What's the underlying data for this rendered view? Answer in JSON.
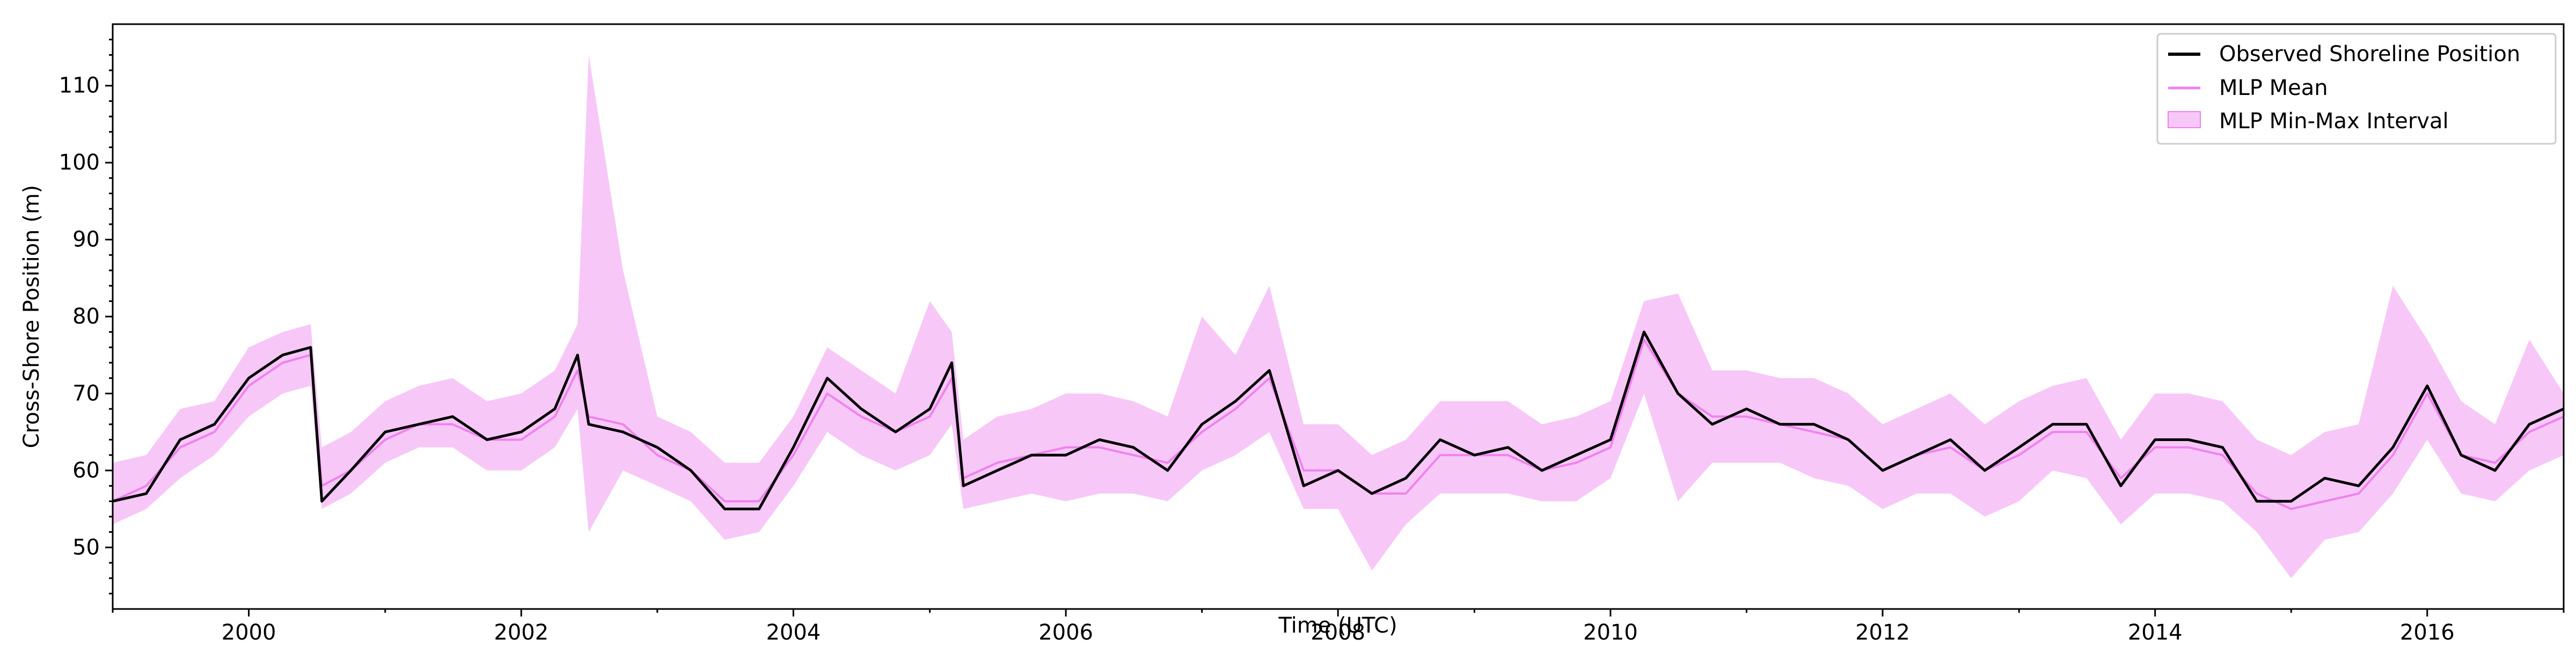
{
  "chart_data": {
    "type": "line",
    "xlabel": "Time (UTC)",
    "ylabel": "Cross-Shore Position (m)",
    "xlim": [
      "1999-01-01",
      "2017-01-01"
    ],
    "ylim": [
      42,
      118
    ],
    "x_ticks": [
      "2000",
      "2002",
      "2004",
      "2006",
      "2008",
      "2010",
      "2012",
      "2014",
      "2016"
    ],
    "y_ticks": [
      50,
      60,
      70,
      80,
      90,
      100,
      110
    ],
    "grid": false,
    "legend_position": "top-right",
    "legend": [
      "Observed Shoreline Position",
      "MLP Mean",
      "MLP Min-Max Interval"
    ],
    "colors": {
      "observed": "#000000",
      "mlp_mean": "#ee82ee",
      "mlp_band": "#ee82ee"
    },
    "x": [
      "1999-01-01",
      "1999-04-01",
      "1999-07-01",
      "1999-10-01",
      "2000-01-01",
      "2000-04-01",
      "2000-06-15",
      "2000-07-15",
      "2000-10-01",
      "2001-01-01",
      "2001-04-01",
      "2001-07-01",
      "2001-10-01",
      "2002-01-01",
      "2002-04-01",
      "2002-06-01",
      "2002-07-01",
      "2002-10-01",
      "2003-01-01",
      "2003-04-01",
      "2003-07-01",
      "2003-10-01",
      "2004-01-01",
      "2004-04-01",
      "2004-07-01",
      "2004-10-01",
      "2005-01-01",
      "2005-03-01",
      "2005-04-01",
      "2005-07-01",
      "2005-10-01",
      "2006-01-01",
      "2006-04-01",
      "2006-07-01",
      "2006-10-01",
      "2007-01-01",
      "2007-04-01",
      "2007-07-01",
      "2007-10-01",
      "2008-01-01",
      "2008-04-01",
      "2008-07-01",
      "2008-10-01",
      "2009-01-01",
      "2009-04-01",
      "2009-07-01",
      "2009-10-01",
      "2010-01-01",
      "2010-04-01",
      "2010-07-01",
      "2010-10-01",
      "2011-01-01",
      "2011-04-01",
      "2011-07-01",
      "2011-10-01",
      "2012-01-01",
      "2012-04-01",
      "2012-07-01",
      "2012-10-01",
      "2013-01-01",
      "2013-04-01",
      "2013-07-01",
      "2013-10-01",
      "2014-01-01",
      "2014-04-01",
      "2014-07-01",
      "2014-10-01",
      "2015-01-01",
      "2015-04-01",
      "2015-07-01",
      "2015-10-01",
      "2016-01-01",
      "2016-04-01",
      "2016-07-01",
      "2016-10-01",
      "2017-01-01"
    ],
    "series": [
      {
        "name": "Observed Shoreline Position",
        "values": [
          56,
          57,
          64,
          66,
          72,
          75,
          76,
          56,
          60,
          65,
          66,
          67,
          64,
          65,
          68,
          75,
          66,
          65,
          63,
          60,
          55,
          55,
          63,
          72,
          68,
          65,
          68,
          74,
          58,
          60,
          62,
          62,
          64,
          63,
          60,
          66,
          69,
          73,
          58,
          60,
          57,
          59,
          64,
          62,
          63,
          60,
          62,
          64,
          78,
          70,
          66,
          68,
          66,
          66,
          64,
          60,
          62,
          64,
          60,
          63,
          66,
          66,
          58,
          64,
          64,
          63,
          56,
          56,
          59,
          58,
          63,
          71,
          62,
          60,
          66,
          68
        ]
      },
      {
        "name": "MLP Mean",
        "values": [
          56,
          58,
          63,
          65,
          71,
          74,
          75,
          58,
          60,
          64,
          66,
          66,
          64,
          64,
          67,
          73,
          67,
          66,
          62,
          60,
          56,
          56,
          62,
          70,
          67,
          65,
          67,
          72,
          59,
          61,
          62,
          63,
          63,
          62,
          61,
          65,
          68,
          72,
          60,
          60,
          57,
          57,
          62,
          62,
          62,
          60,
          61,
          63,
          77,
          70,
          67,
          67,
          66,
          65,
          64,
          60,
          62,
          63,
          60,
          62,
          65,
          65,
          59,
          63,
          63,
          62,
          57,
          55,
          56,
          57,
          62,
          70,
          62,
          61,
          65,
          67
        ]
      },
      {
        "name": "MLP Min-Max Interval",
        "lower": [
          53,
          55,
          59,
          62,
          67,
          70,
          71,
          55,
          57,
          61,
          63,
          63,
          60,
          60,
          63,
          68,
          52,
          60,
          58,
          56,
          51,
          52,
          58,
          65,
          62,
          60,
          62,
          66,
          55,
          56,
          57,
          56,
          57,
          57,
          56,
          60,
          62,
          65,
          55,
          55,
          47,
          53,
          57,
          57,
          57,
          56,
          56,
          59,
          70,
          56,
          61,
          61,
          61,
          59,
          58,
          55,
          57,
          57,
          54,
          56,
          60,
          59,
          53,
          57,
          57,
          56,
          52,
          46,
          51,
          52,
          57,
          64,
          57,
          56,
          60,
          62
        ],
        "upper": [
          61,
          62,
          68,
          69,
          76,
          78,
          79,
          63,
          65,
          69,
          71,
          72,
          69,
          70,
          73,
          79,
          114,
          86,
          67,
          65,
          61,
          61,
          67,
          76,
          73,
          70,
          82,
          78,
          64,
          67,
          68,
          70,
          70,
          69,
          67,
          80,
          75,
          84,
          66,
          66,
          62,
          64,
          69,
          69,
          69,
          66,
          67,
          69,
          82,
          83,
          73,
          73,
          72,
          72,
          70,
          66,
          68,
          70,
          66,
          69,
          71,
          72,
          64,
          70,
          70,
          69,
          64,
          62,
          65,
          66,
          84,
          77,
          69,
          66,
          77,
          70
        ]
      }
    ]
  }
}
